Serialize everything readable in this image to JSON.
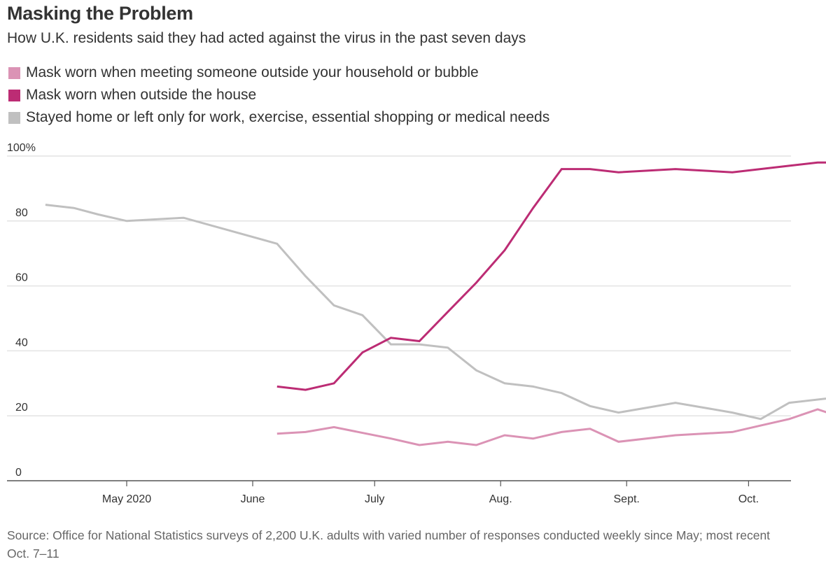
{
  "header": {
    "title": "Masking the Problem",
    "subtitle": "How U.K. residents said they had acted against the virus in the past seven days"
  },
  "footer": {
    "source": "Source: Office for National Statistics surveys of 2,200 U.K. adults with varied number of responses conducted weekly since May; most recent Oct. 7–11"
  },
  "chart_data": {
    "type": "line",
    "title": "Masking the Problem",
    "subtitle": "How U.K. residents said they had acted against the virus in the past seven days",
    "xlabel": "",
    "ylabel": "",
    "ylim": [
      0,
      100
    ],
    "yticks": [
      {
        "value": 0,
        "label": "0"
      },
      {
        "value": 20,
        "label": "20"
      },
      {
        "value": 40,
        "label": "40"
      },
      {
        "value": 60,
        "label": "60"
      },
      {
        "value": 80,
        "label": "80"
      },
      {
        "value": 100,
        "label": "100%"
      }
    ],
    "xlim": [
      "2020-04-01",
      "2020-10-11"
    ],
    "xticks": [
      {
        "date": "2020-05-01",
        "label": "May 2020"
      },
      {
        "date": "2020-06-01",
        "label": "June"
      },
      {
        "date": "2020-07-01",
        "label": "July"
      },
      {
        "date": "2020-08-01",
        "label": "Aug."
      },
      {
        "date": "2020-09-01",
        "label": "Sept."
      },
      {
        "date": "2020-10-01",
        "label": "Oct."
      }
    ],
    "grid": true,
    "legend": "top-left",
    "series": [
      {
        "name": "Mask worn when meeting someone outside your household or bubble",
        "color": "#DB93B5",
        "points": [
          {
            "date": "2020-06-07",
            "value": 14.5
          },
          {
            "date": "2020-06-14",
            "value": 15
          },
          {
            "date": "2020-06-21",
            "value": 16.5
          },
          {
            "date": "2020-07-05",
            "value": 13
          },
          {
            "date": "2020-07-12",
            "value": 11
          },
          {
            "date": "2020-07-19",
            "value": 12
          },
          {
            "date": "2020-07-26",
            "value": 11
          },
          {
            "date": "2020-08-02",
            "value": 14
          },
          {
            "date": "2020-08-09",
            "value": 13
          },
          {
            "date": "2020-08-16",
            "value": 15
          },
          {
            "date": "2020-08-23",
            "value": 16
          },
          {
            "date": "2020-08-30",
            "value": 12
          },
          {
            "date": "2020-09-13",
            "value": 14
          },
          {
            "date": "2020-09-27",
            "value": 15
          },
          {
            "date": "2020-10-04",
            "value": 17
          },
          {
            "date": "2020-10-11",
            "value": 19
          },
          {
            "date": "2020-10-18",
            "value": 22
          },
          {
            "date": "2020-10-25",
            "value": 19
          }
        ]
      },
      {
        "name": "Mask worn when outside the house",
        "color": "#BC2C74",
        "points": [
          {
            "date": "2020-06-07",
            "value": 29
          },
          {
            "date": "2020-06-14",
            "value": 28
          },
          {
            "date": "2020-06-21",
            "value": 30
          },
          {
            "date": "2020-06-28",
            "value": 39.5
          },
          {
            "date": "2020-07-05",
            "value": 44
          },
          {
            "date": "2020-07-12",
            "value": 43
          },
          {
            "date": "2020-07-19",
            "value": 52
          },
          {
            "date": "2020-07-26",
            "value": 61
          },
          {
            "date": "2020-08-02",
            "value": 71
          },
          {
            "date": "2020-08-09",
            "value": 84
          },
          {
            "date": "2020-08-16",
            "value": 96
          },
          {
            "date": "2020-08-23",
            "value": 96
          },
          {
            "date": "2020-08-30",
            "value": 95
          },
          {
            "date": "2020-09-13",
            "value": 96
          },
          {
            "date": "2020-09-27",
            "value": 95
          },
          {
            "date": "2020-10-11",
            "value": 97
          },
          {
            "date": "2020-10-18",
            "value": 98
          },
          {
            "date": "2020-10-25",
            "value": 98
          }
        ]
      },
      {
        "name": "Stayed home or left only for work, exercise, essential shopping or medical needs",
        "color": "#C0C0C0",
        "points": [
          {
            "date": "2020-04-11",
            "value": 85
          },
          {
            "date": "2020-04-18",
            "value": 84
          },
          {
            "date": "2020-04-24",
            "value": 82
          },
          {
            "date": "2020-05-01",
            "value": 80
          },
          {
            "date": "2020-05-15",
            "value": 81
          },
          {
            "date": "2020-06-07",
            "value": 73
          },
          {
            "date": "2020-06-14",
            "value": 63
          },
          {
            "date": "2020-06-21",
            "value": 54
          },
          {
            "date": "2020-06-28",
            "value": 51
          },
          {
            "date": "2020-07-05",
            "value": 42
          },
          {
            "date": "2020-07-12",
            "value": 42
          },
          {
            "date": "2020-07-19",
            "value": 41
          },
          {
            "date": "2020-07-26",
            "value": 34
          },
          {
            "date": "2020-08-02",
            "value": 30
          },
          {
            "date": "2020-08-09",
            "value": 29
          },
          {
            "date": "2020-08-16",
            "value": 27
          },
          {
            "date": "2020-08-23",
            "value": 23
          },
          {
            "date": "2020-08-30",
            "value": 21
          },
          {
            "date": "2020-09-13",
            "value": 24
          },
          {
            "date": "2020-09-27",
            "value": 21
          },
          {
            "date": "2020-10-04",
            "value": 19
          },
          {
            "date": "2020-10-11",
            "value": 24
          },
          {
            "date": "2020-10-25",
            "value": 26
          }
        ]
      }
    ]
  }
}
